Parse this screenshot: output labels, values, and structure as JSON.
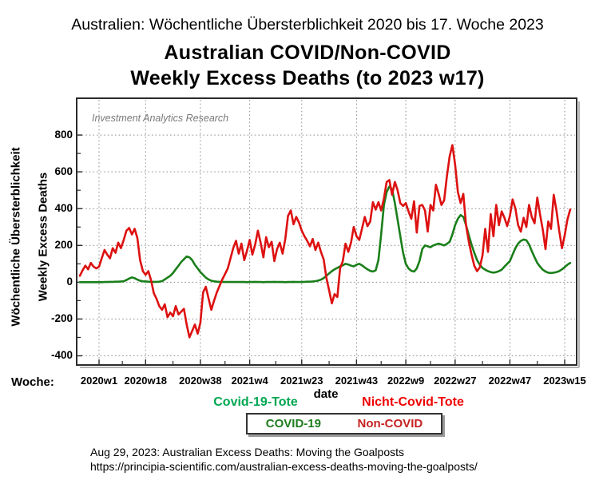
{
  "page": {
    "title_de": "Australien: Wöchentliche Übersterblichkeit 2020 bis 17. Woche 2023",
    "title_en_line1": "Australian COVID/Non-COVID",
    "title_en_line2": "Weekly Excess Deaths (to 2023 w17)",
    "ylabel_de": "Wöchentliche Übersterblichkeit",
    "woche_label": "Woche:"
  },
  "labels": {
    "covid_de": {
      "text": "Covid-19-Tote",
      "color": "#00a651"
    },
    "non_covid_de": {
      "text": "Nicht-Covid-Tote",
      "color": "#ef0000"
    }
  },
  "footer": {
    "line1": "Aug 29, 2023: Australian Excess Deaths: Moving the Goalposts",
    "line2": "https://principia-scientific.com/australian-excess-deaths-moving-the-goalposts/"
  },
  "chart_data": {
    "type": "line",
    "title": "Australian COVID/Non-COVID Weekly Excess Deaths (to 2023 w17)",
    "xlabel": "date",
    "ylabel": "Weekly Excess Deaths",
    "watermark": "Investment Analytics Research",
    "grid": "dotted",
    "legend_position": "below-chart",
    "ylim": [
      -450,
      1000
    ],
    "y_ticks": [
      800,
      600,
      400,
      200,
      0,
      -200,
      -400
    ],
    "x_ticks": [
      {
        "label": "2020w1",
        "week": 0
      },
      {
        "label": "2020w18",
        "week": 17
      },
      {
        "label": "2020w38",
        "week": 37
      },
      {
        "label": "2021w4",
        "week": 55
      },
      {
        "label": "2021w23",
        "week": 74
      },
      {
        "label": "2021w43",
        "week": 94
      },
      {
        "label": "2022w9",
        "week": 112
      },
      {
        "label": "2022w27",
        "week": 130
      },
      {
        "label": "2022w47",
        "week": 150
      },
      {
        "label": "2023w15",
        "week": 170
      }
    ],
    "x_unit": "ISO week index relative to 2020w1",
    "x_start_week_offset": -7,
    "legend": [
      {
        "label": "COVID-19",
        "color": "#1e7d1e"
      },
      {
        "label": "Non-COVID",
        "color": "#c62222"
      }
    ],
    "series": [
      {
        "name": "COVID-19",
        "color": "#1a7f1a",
        "values": [
          0,
          0,
          0,
          0,
          0,
          0,
          0,
          0,
          0,
          1,
          1,
          2,
          2,
          3,
          3,
          4,
          5,
          12,
          20,
          26,
          22,
          14,
          8,
          5,
          4,
          3,
          2,
          2,
          2,
          3,
          6,
          15,
          25,
          35,
          50,
          70,
          90,
          110,
          125,
          140,
          135,
          120,
          95,
          75,
          55,
          40,
          25,
          15,
          8,
          5,
          3,
          2,
          2,
          1,
          1,
          1,
          1,
          1,
          1,
          1,
          1,
          0,
          1,
          1,
          2,
          1,
          1,
          0,
          1,
          1,
          1,
          2,
          1,
          1,
          1,
          0,
          1,
          1,
          2,
          1,
          1,
          1,
          2,
          3,
          3,
          4,
          6,
          9,
          14,
          22,
          35,
          48,
          60,
          70,
          78,
          86,
          92,
          100,
          96,
          90,
          86,
          95,
          100,
          92,
          80,
          70,
          62,
          58,
          65,
          120,
          260,
          420,
          490,
          520,
          505,
          430,
          340,
          250,
          160,
          100,
          75,
          62,
          58,
          75,
          115,
          180,
          200,
          195,
          190,
          200,
          205,
          210,
          205,
          200,
          208,
          220,
          260,
          310,
          345,
          365,
          355,
          310,
          255,
          205,
          160,
          120,
          95,
          78,
          68,
          60,
          55,
          52,
          55,
          60,
          68,
          85,
          100,
          115,
          150,
          185,
          210,
          225,
          232,
          228,
          205,
          170,
          135,
          105,
          85,
          68,
          58,
          52,
          50,
          52,
          55,
          60,
          70,
          82,
          95,
          105
        ]
      },
      {
        "name": "Non-COVID",
        "color": "#dd1111",
        "values": [
          35,
          65,
          90,
          70,
          105,
          85,
          75,
          85,
          130,
          175,
          150,
          130,
          185,
          160,
          215,
          185,
          230,
          280,
          295,
          260,
          290,
          240,
          120,
          60,
          40,
          60,
          10,
          -60,
          -90,
          -130,
          -150,
          -120,
          -190,
          -165,
          -185,
          -130,
          -175,
          -160,
          -145,
          -230,
          -300,
          -265,
          -230,
          -280,
          -220,
          -55,
          -25,
          -90,
          -150,
          -100,
          -55,
          -20,
          15,
          45,
          75,
          130,
          185,
          225,
          155,
          210,
          120,
          170,
          230,
          150,
          205,
          280,
          215,
          135,
          245,
          190,
          220,
          115,
          180,
          215,
          155,
          235,
          360,
          390,
          315,
          355,
          325,
          280,
          250,
          225,
          195,
          235,
          175,
          215,
          165,
          125,
          25,
          -45,
          -115,
          -65,
          -80,
          75,
          115,
          210,
          165,
          215,
          300,
          250,
          230,
          290,
          355,
          305,
          330,
          435,
          395,
          435,
          390,
          455,
          545,
          555,
          475,
          545,
          500,
          430,
          415,
          430,
          385,
          345,
          440,
          270,
          415,
          420,
          390,
          275,
          420,
          390,
          530,
          480,
          420,
          445,
          575,
          685,
          745,
          640,
          490,
          430,
          480,
          310,
          220,
          150,
          90,
          60,
          80,
          145,
          290,
          165,
          370,
          250,
          420,
          310,
          385,
          350,
          305,
          360,
          450,
          400,
          310,
          275,
          350,
          300,
          420,
          355,
          320,
          460,
          370,
          285,
          180,
          330,
          290,
          475,
          390,
          280,
          185,
          255,
          340,
          395
        ]
      }
    ]
  }
}
